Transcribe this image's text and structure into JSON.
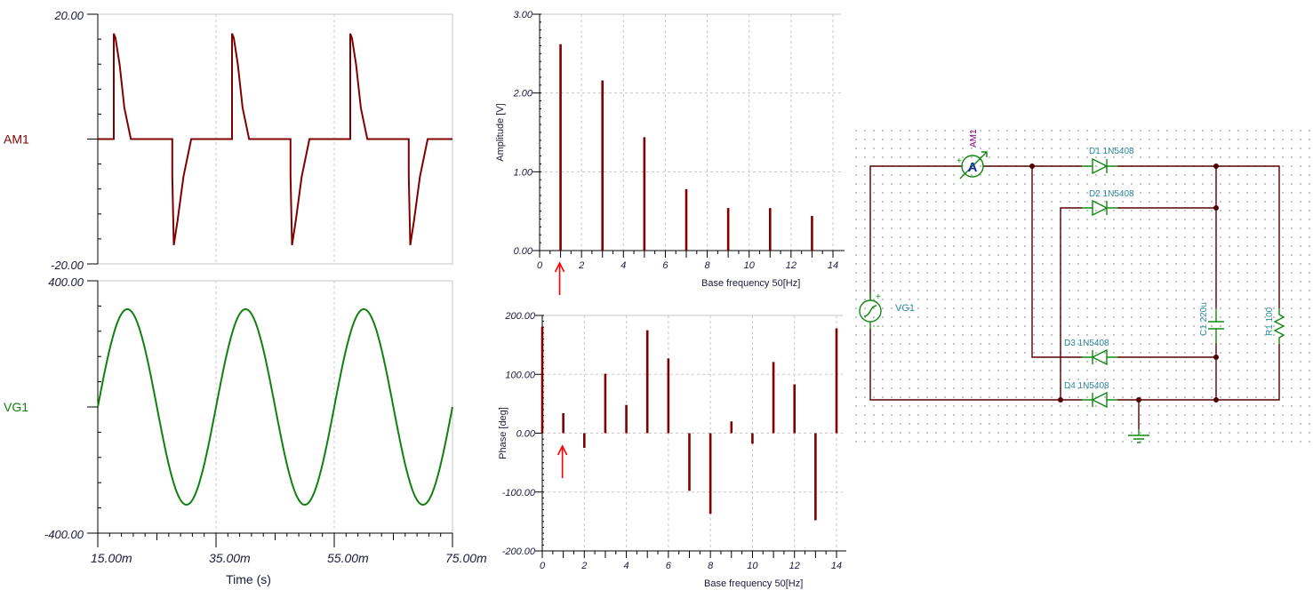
{
  "transient": {
    "time_axis": {
      "label": "Time (s)",
      "ticks": [
        "15.00m",
        "35.00m",
        "55.00m",
        "75.00m"
      ]
    }
  },
  "chart_data": [
    {
      "type": "line",
      "id": "am1",
      "ylabel": "AM1",
      "xlabel": "Time (s)",
      "x_unit": "ms",
      "xlim": [
        15,
        75
      ],
      "ylim": [
        -20,
        20
      ],
      "y_tick_labels": [
        "20.00",
        "-20.00"
      ],
      "grid": "vertical dashed",
      "series": [
        {
          "name": "AM1",
          "color": "#800000",
          "points": [
            [
              15,
              0
            ],
            [
              17.7,
              0
            ],
            [
              17.7,
              16.9
            ],
            [
              18.0,
              16.2
            ],
            [
              18.7,
              11.9
            ],
            [
              19.5,
              5
            ],
            [
              20.6,
              0
            ],
            [
              27.6,
              0
            ],
            [
              27.6,
              -5.8
            ],
            [
              27.85,
              -17
            ],
            [
              28.5,
              -13
            ],
            [
              29.5,
              -6
            ],
            [
              30.8,
              0
            ],
            [
              37.7,
              0
            ],
            [
              37.7,
              16.9
            ],
            [
              38.0,
              16.2
            ],
            [
              38.7,
              11.9
            ],
            [
              39.5,
              5
            ],
            [
              40.6,
              0
            ],
            [
              47.6,
              0
            ],
            [
              47.6,
              -5.8
            ],
            [
              47.85,
              -17
            ],
            [
              48.5,
              -13
            ],
            [
              49.5,
              -6
            ],
            [
              50.8,
              0
            ],
            [
              57.7,
              0
            ],
            [
              57.7,
              16.9
            ],
            [
              58.0,
              16.2
            ],
            [
              58.7,
              11.9
            ],
            [
              59.5,
              5
            ],
            [
              60.6,
              0
            ],
            [
              67.6,
              0
            ],
            [
              67.6,
              -5.8
            ],
            [
              67.85,
              -17
            ],
            [
              68.5,
              -13
            ],
            [
              69.5,
              -6
            ],
            [
              70.8,
              0
            ],
            [
              75,
              0
            ]
          ]
        }
      ]
    },
    {
      "type": "line",
      "id": "vg1",
      "ylabel": "VG1",
      "xlabel": "Time (s)",
      "x_unit": "ms",
      "xlim": [
        15,
        75
      ],
      "ylim": [
        -400,
        400
      ],
      "y_tick_labels": [
        "400.00",
        "-400.00"
      ],
      "grid": "vertical dashed",
      "series": [
        {
          "name": "VG1",
          "color": "#108010",
          "waveform": "sine",
          "amplitude": 310,
          "frequency_hz": 50,
          "zero_crossing_ms": 15
        }
      ]
    },
    {
      "type": "bar",
      "id": "amplitude",
      "xlabel": "Base frequency 50[Hz]",
      "ylabel": "Amplitude [V]",
      "xlim": [
        0,
        14
      ],
      "ylim": [
        0,
        3
      ],
      "x_tick_labels": [
        "0",
        "2",
        "4",
        "6",
        "8",
        "10",
        "12",
        "14"
      ],
      "y_tick_labels": [
        "3.00",
        "2.00",
        "1.00",
        "0.00"
      ],
      "x": [
        1,
        3,
        5,
        7,
        9,
        11,
        13
      ],
      "values": [
        2.62,
        2.16,
        1.44,
        0.78,
        0.54,
        0.54,
        0.44
      ],
      "color": "#800000",
      "annotation": {
        "type": "red-arrow",
        "at_x": 1,
        "color": "#ff0000"
      }
    },
    {
      "type": "bar",
      "id": "phase",
      "xlabel": "Base frequency 50[Hz]",
      "ylabel": "Phase [deg]",
      "xlim": [
        0,
        14
      ],
      "ylim": [
        -200,
        200
      ],
      "x_tick_labels": [
        "0",
        "2",
        "4",
        "6",
        "8",
        "10",
        "12",
        "14"
      ],
      "y_tick_labels": [
        "200.00",
        "100.00",
        "0.00",
        "-100.00",
        "-200.00"
      ],
      "x": [
        0,
        1,
        2,
        3,
        4,
        5,
        6,
        7,
        8,
        9,
        10,
        11,
        12,
        13,
        14
      ],
      "values": [
        181,
        34,
        -25,
        101,
        48,
        175,
        127,
        -98,
        -137,
        20,
        -18,
        121,
        83,
        -148,
        178
      ],
      "color": "#800000",
      "annotation": {
        "type": "red-arrow",
        "at_x": 1,
        "color": "#ff0000"
      }
    }
  ],
  "schematic": {
    "ammeter": {
      "name": "AM1",
      "symbol": "A",
      "plus": "+"
    },
    "source": {
      "name": "VG1",
      "plus": "+",
      "minus": "-"
    },
    "diodes": [
      "D1 1N5408",
      "D2 1N5408",
      "D3 1N5408",
      "D4 1N5408"
    ],
    "capacitor": "C1 220u",
    "resistor": "R1 100",
    "colors": {
      "wire": "#550000",
      "component": "#118811",
      "label": "#2a8a9e",
      "ammeter_label": "#800080"
    }
  }
}
